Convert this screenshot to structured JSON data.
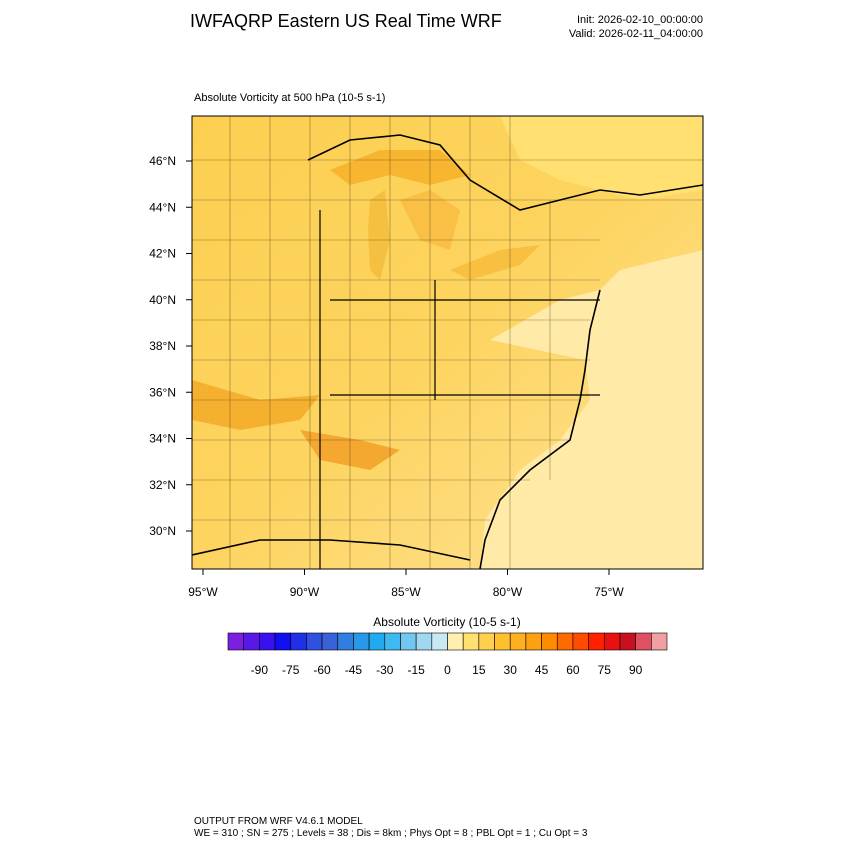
{
  "header": {
    "title": "IWFAQRP Eastern US Real Time WRF",
    "init": "Init: 2026-02-10_00:00:00",
    "valid": "Valid: 2026-02-11_04:00:00"
  },
  "map": {
    "subtitle": "Absolute Vorticity at 500 hPa   (10-5 s-1)",
    "lat_labels": [
      "46°N",
      "44°N",
      "42°N",
      "40°N",
      "38°N",
      "36°N",
      "34°N",
      "32°N",
      "30°N"
    ],
    "lon_labels": [
      "95°W",
      "90°W",
      "85°W",
      "80°W",
      "75°W"
    ]
  },
  "colorbar": {
    "title": "Absolute Vorticity  (10-5 s-1)",
    "ticks": [
      -90,
      -75,
      -60,
      -45,
      -30,
      -15,
      0,
      15,
      30,
      45,
      60,
      75,
      90
    ],
    "colors": [
      "#7a1fe0",
      "#5a18e8",
      "#3a10f0",
      "#1010f0",
      "#2030e8",
      "#3050e0",
      "#3a62d8",
      "#2f7ee0",
      "#2898e8",
      "#20aaf0",
      "#40b8f0",
      "#70c8f0",
      "#a0d8f0",
      "#c8e8f4",
      "#fff0b0",
      "#ffe070",
      "#ffd050",
      "#ffc030",
      "#ffb020",
      "#ffa010",
      "#ff8c00",
      "#ff6a00",
      "#ff4a00",
      "#ff2000",
      "#e81010",
      "#c81020",
      "#e05060",
      "#f0a0a0"
    ]
  },
  "footer": {
    "lines": [
      "OUTPUT FROM WRF V4.6.1 MODEL",
      "WE = 310 ; SN = 275 ; Levels = 38 ; Dis = 8km ; Phys Opt = 8 ; PBL Opt = 1 ; Cu Opt = 3"
    ]
  }
}
